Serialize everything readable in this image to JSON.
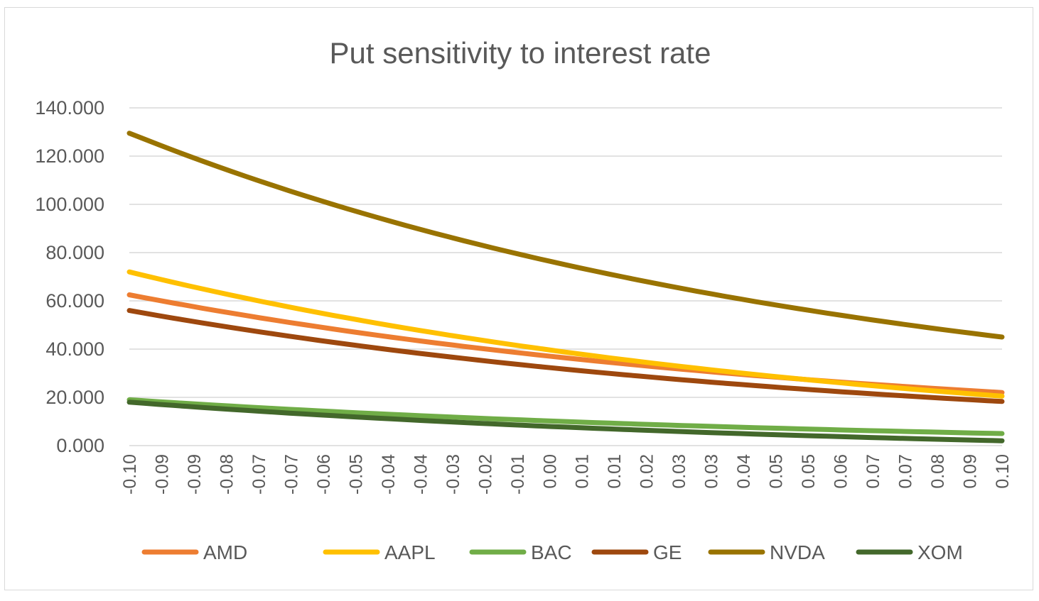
{
  "chart_data": {
    "type": "line",
    "title": "Put sensitivity to interest rate",
    "xlabel": "",
    "ylabel": "",
    "ylim": [
      0,
      140
    ],
    "y_ticks": [
      "0.000",
      "20.000",
      "40.000",
      "60.000",
      "80.000",
      "100.000",
      "120.000",
      "140.000"
    ],
    "y_tick_values": [
      0,
      20,
      40,
      60,
      80,
      100,
      120,
      140
    ],
    "categories": [
      "-0.10",
      "-0.09",
      "-0.09",
      "-0.08",
      "-0.07",
      "-0.07",
      "-0.06",
      "-0.05",
      "-0.04",
      "-0.04",
      "-0.03",
      "-0.02",
      "-0.01",
      "0.00",
      "0.01",
      "0.01",
      "0.02",
      "0.03",
      "0.03",
      "0.04",
      "0.05",
      "0.05",
      "0.06",
      "0.07",
      "0.07",
      "0.08",
      "0.09",
      "0.10"
    ],
    "grid": true,
    "legend_position": "bottom",
    "series": [
      {
        "name": "AMD",
        "color": "#ed7d31",
        "start": 62.5,
        "end": 22.0
      },
      {
        "name": "AAPL",
        "color": "#ffc000",
        "start": 72.0,
        "end": 20.5
      },
      {
        "name": "BAC",
        "color": "#70ad47",
        "start": 19.0,
        "end": 5.0
      },
      {
        "name": "GE",
        "color": "#9e480e",
        "start": 56.0,
        "end": 18.3
      },
      {
        "name": "NVDA",
        "color": "#997300",
        "start": 129.5,
        "end": 45.0
      },
      {
        "name": "XOM",
        "color": "#43682b",
        "start": 18.0,
        "end": 2.0
      }
    ]
  }
}
